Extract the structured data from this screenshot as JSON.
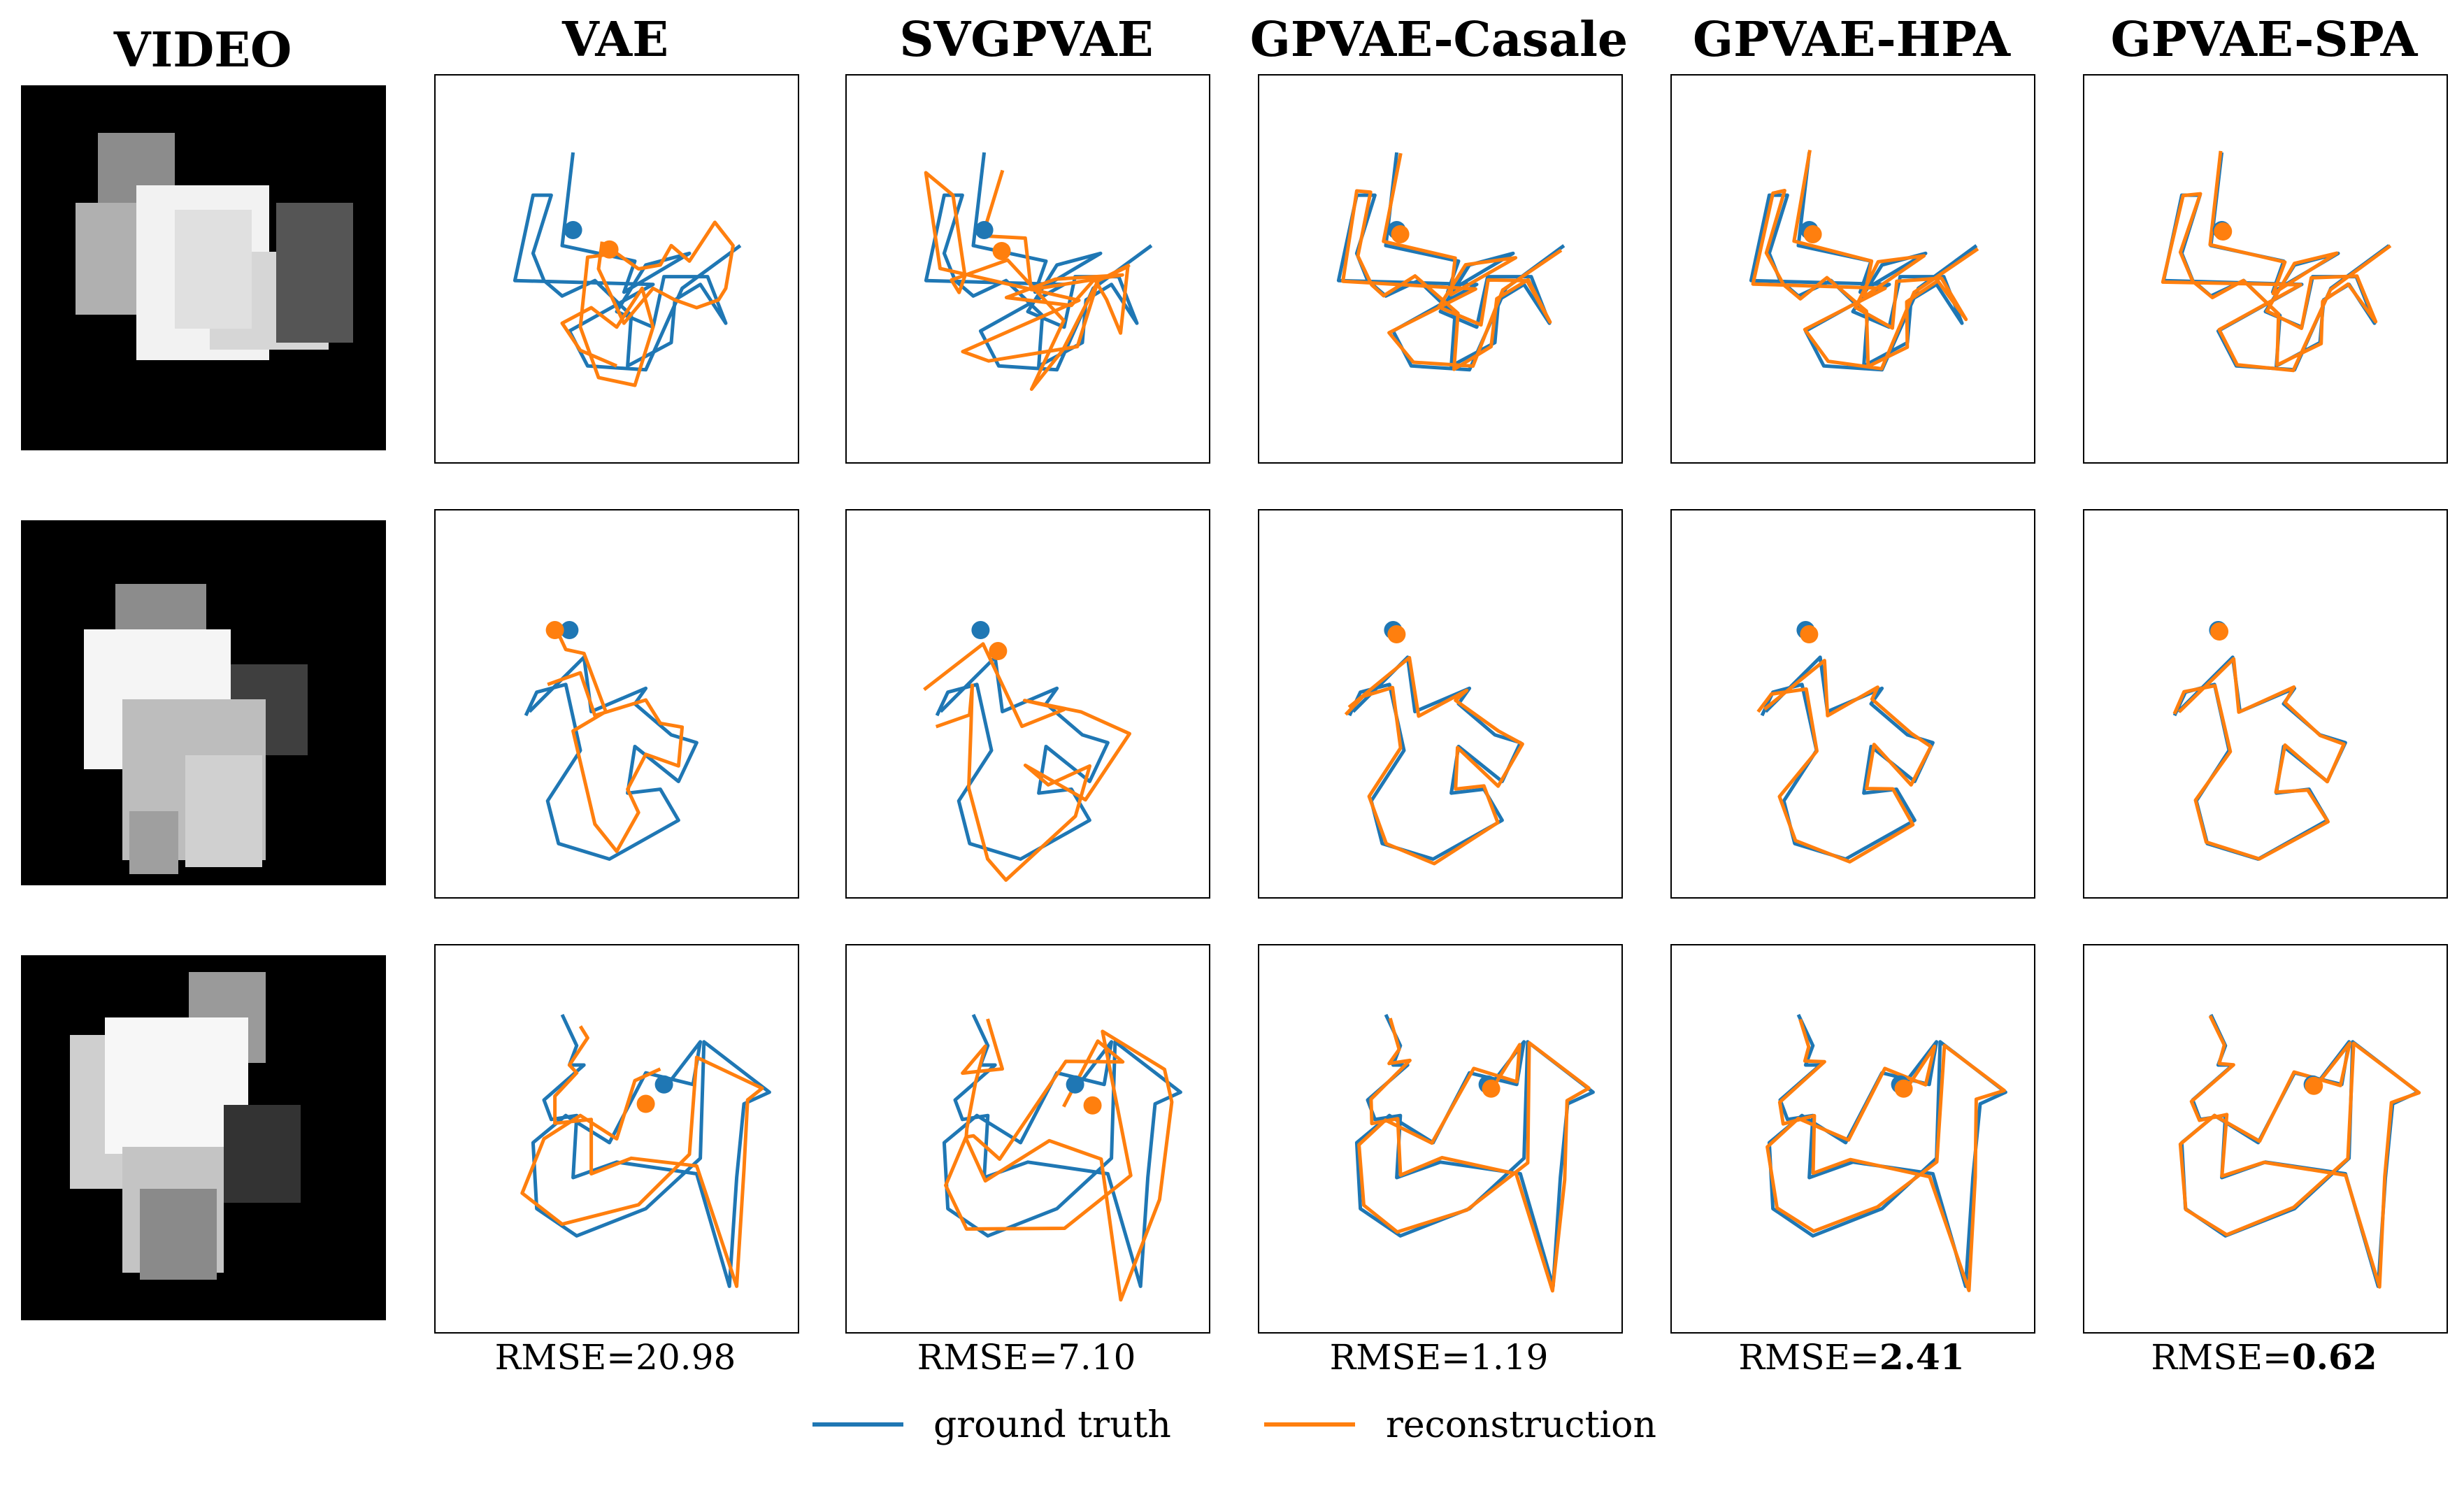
{
  "figure": {
    "video_title": "VIDEO",
    "methods": [
      {
        "title": "VAE",
        "rmse_prefix": "RMSE=",
        "rmse_value": "20.98",
        "rmse_bold": false
      },
      {
        "title": "SVGPVAE",
        "rmse_prefix": "RMSE=",
        "rmse_value": "7.10",
        "rmse_bold": false
      },
      {
        "title": "GPVAE-Casale",
        "rmse_prefix": "RMSE=",
        "rmse_value": "1.19",
        "rmse_bold": false
      },
      {
        "title": "GPVAE-HPA",
        "rmse_prefix": "RMSE=",
        "rmse_value": "2.41",
        "rmse_bold": true
      },
      {
        "title": "GPVAE-SPA",
        "rmse_prefix": "RMSE=",
        "rmse_value": "0.62",
        "rmse_bold": true
      }
    ],
    "legend": [
      {
        "label": "ground truth",
        "color": "#1f77b4"
      },
      {
        "label": "reconstruction",
        "color": "#ff7f0e"
      }
    ],
    "colors": {
      "ground_truth": "#1f77b4",
      "reconstruction": "#ff7f0e",
      "video_bg": "#000000"
    }
  },
  "chart_data": {
    "type": "line",
    "grid": false,
    "axes_ticks": false,
    "series": [
      {
        "name": "ground truth"
      },
      {
        "name": "reconstruction"
      }
    ],
    "rows": [
      {
        "gt": [
          [
            0.38,
            0.2
          ],
          [
            0.35,
            0.44
          ],
          [
            0.55,
            0.48
          ],
          [
            0.52,
            0.56
          ],
          [
            0.7,
            0.46
          ],
          [
            0.58,
            0.49
          ],
          [
            0.5,
            0.61
          ],
          [
            0.6,
            0.65
          ],
          [
            0.63,
            0.52
          ],
          [
            0.75,
            0.52
          ],
          [
            0.8,
            0.64
          ],
          [
            0.73,
            0.54
          ],
          [
            0.66,
            0.58
          ],
          [
            0.65,
            0.69
          ],
          [
            0.53,
            0.75
          ],
          [
            0.54,
            0.62
          ],
          [
            0.44,
            0.53
          ],
          [
            0.35,
            0.57
          ],
          [
            0.3,
            0.53
          ],
          [
            0.27,
            0.46
          ],
          [
            0.32,
            0.31
          ],
          [
            0.27,
            0.31
          ],
          [
            0.22,
            0.53
          ],
          [
            0.6,
            0.54
          ],
          [
            0.37,
            0.66
          ],
          [
            0.42,
            0.75
          ],
          [
            0.58,
            0.76
          ],
          [
            0.68,
            0.55
          ],
          [
            0.84,
            0.44
          ]
        ],
        "gt_start": [
          0.38,
          0.4
        ],
        "rc": [
          [
            0.5,
            0.75
          ],
          [
            0.4,
            0.71
          ],
          [
            0.35,
            0.64
          ],
          [
            0.43,
            0.6
          ],
          [
            0.5,
            0.65
          ],
          [
            0.57,
            0.55
          ],
          [
            0.6,
            0.65
          ],
          [
            0.55,
            0.8
          ],
          [
            0.45,
            0.78
          ],
          [
            0.4,
            0.65
          ],
          [
            0.42,
            0.47
          ],
          [
            0.5,
            0.46
          ],
          [
            0.56,
            0.5
          ],
          [
            0.62,
            0.49
          ],
          [
            0.65,
            0.44
          ],
          [
            0.7,
            0.48
          ],
          [
            0.77,
            0.38
          ],
          [
            0.82,
            0.44
          ],
          [
            0.8,
            0.55
          ],
          [
            0.78,
            0.58
          ],
          [
            0.72,
            0.6
          ],
          [
            0.66,
            0.58
          ],
          [
            0.6,
            0.55
          ],
          [
            0.52,
            0.64
          ],
          [
            0.45,
            0.5
          ],
          [
            0.46,
            0.43
          ]
        ],
        "rc_start": [
          0.48,
          0.45
        ]
      },
      {
        "gt": [
          [
            0.26,
            0.52
          ],
          [
            0.41,
            0.38
          ],
          [
            0.43,
            0.52
          ],
          [
            0.58,
            0.46
          ],
          [
            0.55,
            0.5
          ],
          [
            0.65,
            0.58
          ],
          [
            0.72,
            0.6
          ],
          [
            0.67,
            0.7
          ],
          [
            0.55,
            0.61
          ],
          [
            0.53,
            0.73
          ],
          [
            0.62,
            0.72
          ],
          [
            0.67,
            0.8
          ],
          [
            0.48,
            0.9
          ],
          [
            0.34,
            0.86
          ],
          [
            0.31,
            0.75
          ],
          [
            0.4,
            0.62
          ],
          [
            0.36,
            0.45
          ],
          [
            0.28,
            0.47
          ],
          [
            0.25,
            0.53
          ]
        ],
        "gt_start": [
          0.37,
          0.31
        ],
        "rc": [
          [
            0.31,
            0.45
          ],
          [
            0.4,
            0.42
          ],
          [
            0.44,
            0.53
          ],
          [
            0.58,
            0.49
          ],
          [
            0.62,
            0.55
          ],
          [
            0.68,
            0.56
          ],
          [
            0.67,
            0.66
          ],
          [
            0.58,
            0.63
          ],
          [
            0.53,
            0.72
          ],
          [
            0.56,
            0.78
          ],
          [
            0.5,
            0.88
          ],
          [
            0.44,
            0.81
          ],
          [
            0.38,
            0.57
          ],
          [
            0.47,
            0.52
          ],
          [
            0.41,
            0.37
          ],
          [
            0.36,
            0.36
          ],
          [
            0.33,
            0.3
          ]
        ],
        "rc_start": [
          0.33,
          0.31
        ]
      },
      {
        "gt": [
          [
            0.35,
            0.18
          ],
          [
            0.39,
            0.26
          ],
          [
            0.37,
            0.31
          ],
          [
            0.41,
            0.31
          ],
          [
            0.3,
            0.4
          ],
          [
            0.32,
            0.45
          ],
          [
            0.39,
            0.44
          ],
          [
            0.38,
            0.6
          ],
          [
            0.5,
            0.56
          ],
          [
            0.72,
            0.59
          ],
          [
            0.81,
            0.88
          ],
          [
            0.83,
            0.6
          ],
          [
            0.85,
            0.41
          ],
          [
            0.92,
            0.38
          ],
          [
            0.74,
            0.25
          ],
          [
            0.73,
            0.55
          ],
          [
            0.58,
            0.68
          ],
          [
            0.39,
            0.75
          ],
          [
            0.28,
            0.68
          ],
          [
            0.27,
            0.51
          ],
          [
            0.36,
            0.44
          ],
          [
            0.48,
            0.51
          ],
          [
            0.58,
            0.33
          ],
          [
            0.71,
            0.36
          ],
          [
            0.73,
            0.25
          ],
          [
            0.64,
            0.36
          ]
        ],
        "gt_start": [
          0.63,
          0.36
        ],
        "rc": [
          [
            0.4,
            0.21
          ],
          [
            0.42,
            0.24
          ],
          [
            0.37,
            0.31
          ],
          [
            0.39,
            0.33
          ],
          [
            0.33,
            0.39
          ],
          [
            0.33,
            0.46
          ],
          [
            0.43,
            0.45
          ],
          [
            0.43,
            0.59
          ],
          [
            0.54,
            0.55
          ],
          [
            0.72,
            0.57
          ],
          [
            0.83,
            0.88
          ],
          [
            0.85,
            0.58
          ],
          [
            0.86,
            0.4
          ],
          [
            0.9,
            0.37
          ],
          [
            0.72,
            0.29
          ],
          [
            0.7,
            0.54
          ],
          [
            0.56,
            0.67
          ],
          [
            0.35,
            0.72
          ],
          [
            0.24,
            0.64
          ],
          [
            0.3,
            0.5
          ],
          [
            0.4,
            0.44
          ],
          [
            0.5,
            0.5
          ],
          [
            0.55,
            0.35
          ],
          [
            0.62,
            0.32
          ]
        ],
        "rc_start": [
          0.58,
          0.41
        ]
      }
    ]
  }
}
